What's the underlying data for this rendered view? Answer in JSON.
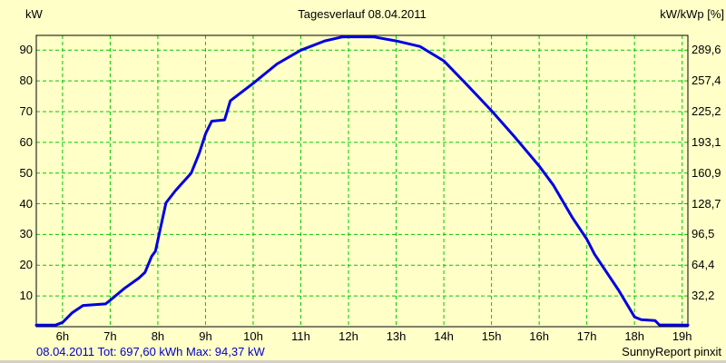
{
  "title": "Tagesverlauf 08.04.2011",
  "axes": {
    "left_label": "kW",
    "right_label": "kW/kWp [%]",
    "left_ticks": [
      "90",
      "80",
      "70",
      "60",
      "50",
      "40",
      "30",
      "20",
      "10"
    ],
    "right_ticks": [
      "289,6",
      "257,4",
      "225,2",
      "193,1",
      "160,9",
      "128,7",
      "96,5",
      "64,4",
      "32,2"
    ],
    "x_ticks": [
      "6h",
      "7h",
      "8h",
      "9h",
      "10h",
      "11h",
      "12h",
      "13h",
      "14h",
      "15h",
      "16h",
      "17h",
      "18h",
      "19h"
    ]
  },
  "footer": {
    "summary": "08.04.2011 Tot: 697,60 kWh Max: 94,37 kW",
    "credit": "SunnyReport pinxit"
  },
  "colors": {
    "background": "#FFFFC8",
    "grid": "#00C800",
    "curve": "#0000E0",
    "frame": "#000000",
    "summary_text": "#0000C8",
    "text": "#000000"
  },
  "chart_data": {
    "type": "line",
    "title": "Tagesverlauf 08.04.2011",
    "date": "08.04.2011",
    "total_kwh": 697.6,
    "max_kw": 94.37,
    "grid": true,
    "ylabel_left": "kW",
    "ylabel_right": "kW/kWp [%]",
    "x_unit": "h",
    "x_ticks_hours": [
      6,
      7,
      8,
      9,
      10,
      11,
      12,
      13,
      14,
      15,
      16,
      17,
      18,
      19
    ],
    "xlim_hours": [
      5.45,
      19.12
    ],
    "ylim_kw": [
      0,
      94.8
    ],
    "left_tick_values_kw": [
      90,
      80,
      70,
      60,
      50,
      40,
      30,
      20,
      10
    ],
    "right_tick_values_pct": [
      289.6,
      257.4,
      225.2,
      193.1,
      160.9,
      128.7,
      96.5,
      64.4,
      32.2
    ],
    "points_hour_kw": [
      [
        5.45,
        0.5
      ],
      [
        5.85,
        0.5
      ],
      [
        6.0,
        1.4
      ],
      [
        6.2,
        4.5
      ],
      [
        6.43,
        6.9
      ],
      [
        6.9,
        7.4
      ],
      [
        7.0,
        8.6
      ],
      [
        7.3,
        12.5
      ],
      [
        7.6,
        15.8
      ],
      [
        7.73,
        17.7
      ],
      [
        7.87,
        22.9
      ],
      [
        7.95,
        24.6
      ],
      [
        8.17,
        40.3
      ],
      [
        8.37,
        44.3
      ],
      [
        8.7,
        50.0
      ],
      [
        8.87,
        56.5
      ],
      [
        9.0,
        62.8
      ],
      [
        9.13,
        66.9
      ],
      [
        9.4,
        67.3
      ],
      [
        9.52,
        73.5
      ],
      [
        10.0,
        79.2
      ],
      [
        10.5,
        85.5
      ],
      [
        11.0,
        90.0
      ],
      [
        11.5,
        93.0
      ],
      [
        11.87,
        94.3
      ],
      [
        12.1,
        94.37
      ],
      [
        12.53,
        94.3
      ],
      [
        13.0,
        93.0
      ],
      [
        13.5,
        91.2
      ],
      [
        14.0,
        86.5
      ],
      [
        14.5,
        78.5
      ],
      [
        15.0,
        70.3
      ],
      [
        15.5,
        61.5
      ],
      [
        16.0,
        52.3
      ],
      [
        16.3,
        46.0
      ],
      [
        16.7,
        35.4
      ],
      [
        17.0,
        28.5
      ],
      [
        17.16,
        23.6
      ],
      [
        17.67,
        11.8
      ],
      [
        18.0,
        3.2
      ],
      [
        18.14,
        2.3
      ],
      [
        18.43,
        2.0
      ],
      [
        18.52,
        0.6
      ],
      [
        19.12,
        0.5
      ]
    ]
  }
}
